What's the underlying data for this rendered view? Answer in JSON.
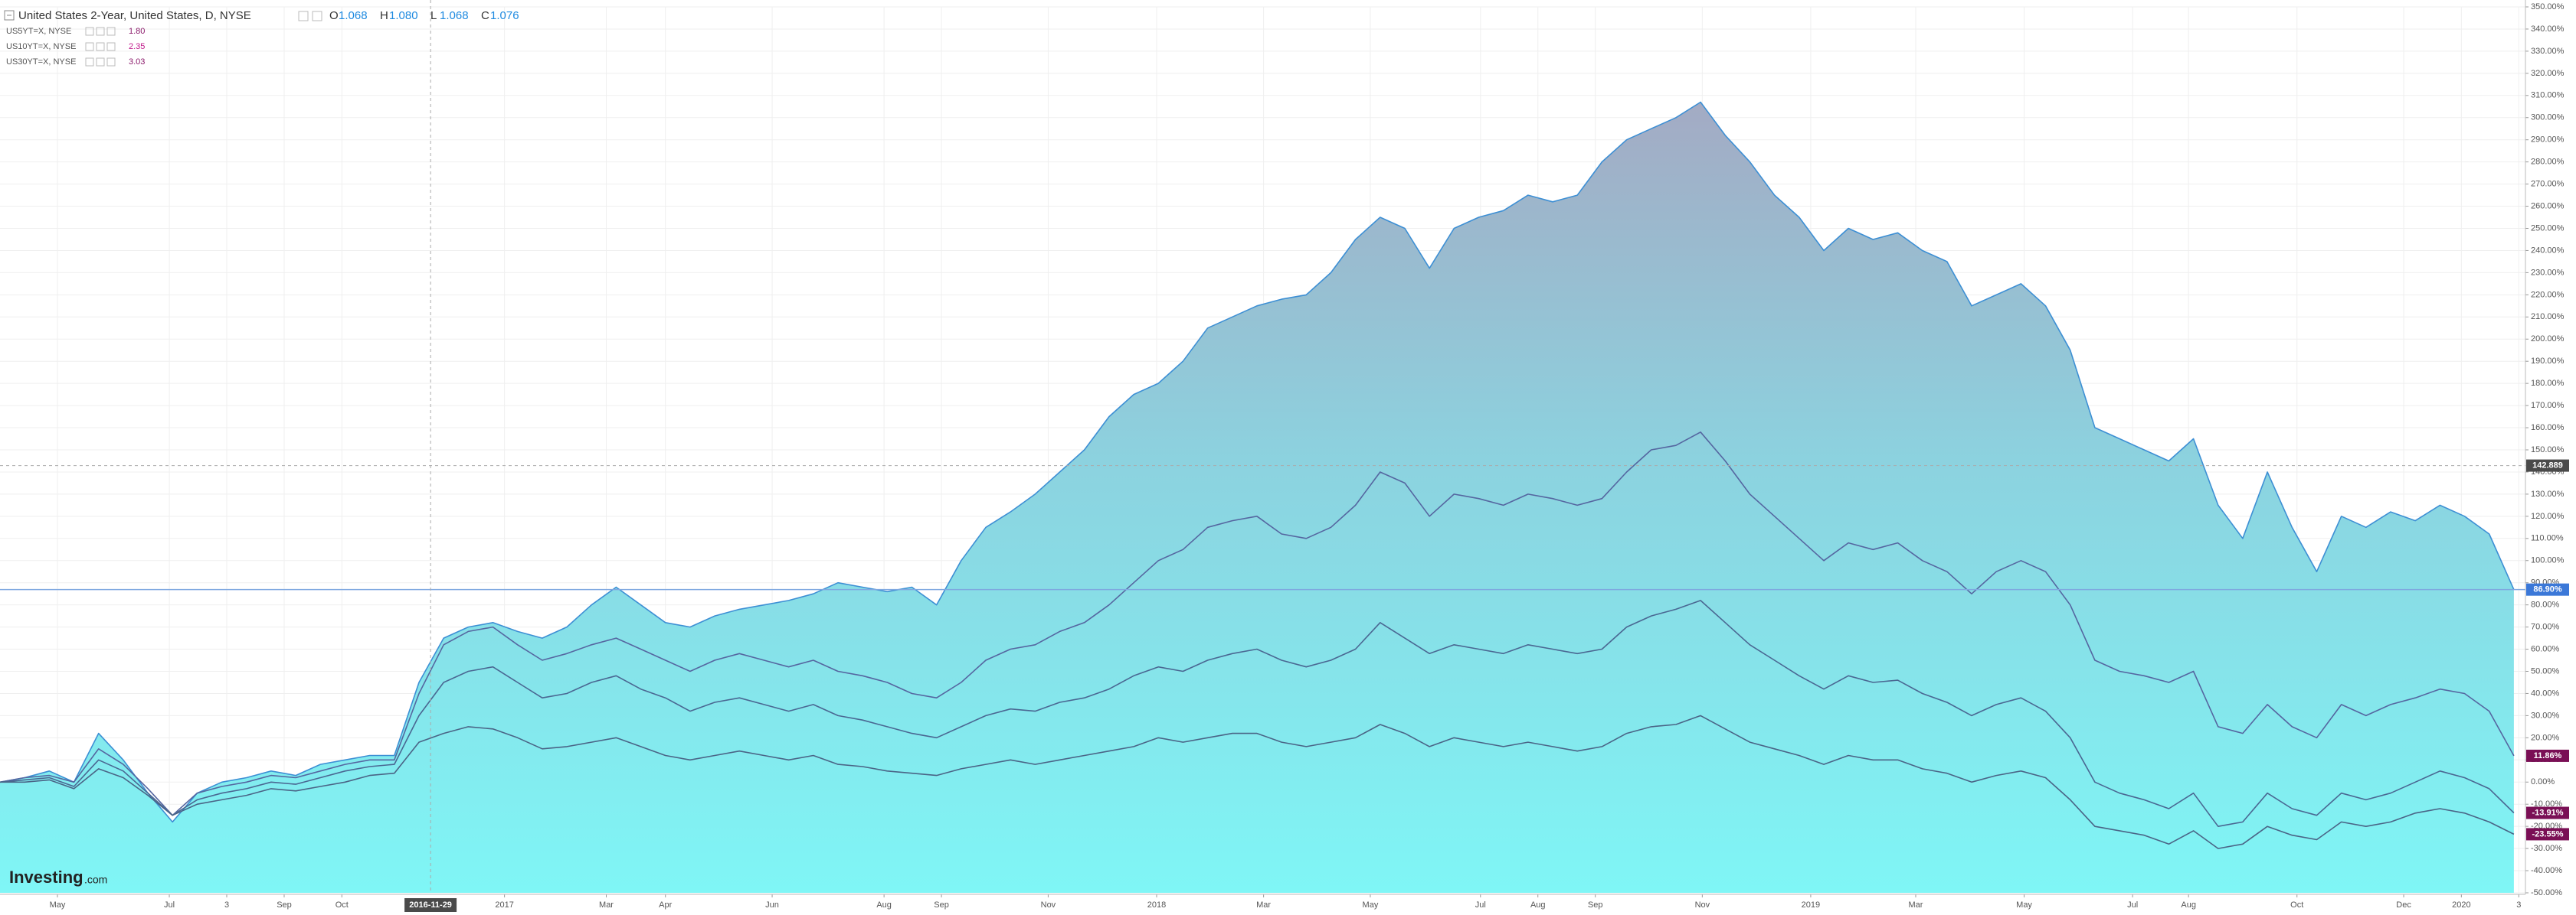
{
  "chart_data": {
    "type": "line",
    "logo": {
      "brand": "Investing",
      "suffix": ".com"
    },
    "x": [
      0,
      1,
      2,
      3,
      4,
      5,
      6,
      7,
      8,
      9,
      10,
      11,
      12,
      13,
      14,
      15,
      16,
      17,
      18,
      19,
      20,
      21,
      22,
      23,
      24,
      25,
      26,
      27,
      28,
      29,
      30,
      31,
      32,
      33,
      34,
      35,
      36,
      37,
      38,
      39,
      40,
      41,
      42,
      43,
      44,
      45,
      46,
      47,
      48,
      49,
      50,
      51,
      52,
      53,
      54,
      55,
      56,
      57,
      58,
      59,
      60,
      61,
      62,
      63,
      64,
      65,
      66,
      67,
      68,
      69,
      70,
      71,
      72,
      73,
      74,
      75,
      76,
      77,
      78,
      79,
      80,
      81,
      82,
      83,
      84,
      85,
      86,
      87,
      88,
      89,
      90,
      91,
      92,
      93,
      94,
      95,
      96,
      97,
      98,
      99,
      100,
      101,
      102
    ],
    "xlim": [
      0,
      102.47
    ],
    "xticks": [
      {
        "value": 2.33,
        "label": "May"
      },
      {
        "value": 6.87,
        "label": "Jul"
      },
      {
        "value": 9.2,
        "label": "3"
      },
      {
        "value": 11.53,
        "label": "Sep"
      },
      {
        "value": 13.87,
        "label": "Oct"
      },
      {
        "value": 20.47,
        "label": "2017"
      },
      {
        "value": 24.6,
        "label": "Mar"
      },
      {
        "value": 27,
        "label": "Apr"
      },
      {
        "value": 31.33,
        "label": "Jun"
      },
      {
        "value": 35.87,
        "label": "Aug"
      },
      {
        "value": 38.2,
        "label": "Sep"
      },
      {
        "value": 42.53,
        "label": "Nov"
      },
      {
        "value": 46.93,
        "label": "2018"
      },
      {
        "value": 51.27,
        "label": "Mar"
      },
      {
        "value": 55.6,
        "label": "May"
      },
      {
        "value": 60.07,
        "label": "Jul"
      },
      {
        "value": 62.4,
        "label": "Aug"
      },
      {
        "value": 64.73,
        "label": "Sep"
      },
      {
        "value": 69.07,
        "label": "Nov"
      },
      {
        "value": 73.47,
        "label": "2019"
      },
      {
        "value": 77.73,
        "label": "Mar"
      },
      {
        "value": 82.13,
        "label": "May"
      },
      {
        "value": 86.53,
        "label": "Jul"
      },
      {
        "value": 88.8,
        "label": "Aug"
      },
      {
        "value": 93.2,
        "label": "Oct"
      },
      {
        "value": 97.53,
        "label": "Dec"
      },
      {
        "value": 99.87,
        "label": "2020"
      },
      {
        "value": 102.2,
        "label": "3"
      }
    ],
    "ylim": [
      -50,
      350
    ],
    "yticks": [
      {
        "value": -50,
        "label": "-50.00%"
      },
      {
        "value": -40,
        "label": "-40.00%"
      },
      {
        "value": -30,
        "label": "-30.00%"
      },
      {
        "value": -20,
        "label": "-20.00%"
      },
      {
        "value": -10,
        "label": "-10.00%"
      },
      {
        "value": 0,
        "label": "0.00%"
      },
      {
        "value": 10,
        "label": "10.00%"
      },
      {
        "value": 20,
        "label": "20.00%"
      },
      {
        "value": 30,
        "label": "30.00%"
      },
      {
        "value": 40,
        "label": "40.00%"
      },
      {
        "value": 50,
        "label": "50.00%"
      },
      {
        "value": 60,
        "label": "60.00%"
      },
      {
        "value": 70,
        "label": "70.00%"
      },
      {
        "value": 80,
        "label": "80.00%"
      },
      {
        "value": 90,
        "label": "90.00%"
      },
      {
        "value": 100,
        "label": "100.00%"
      },
      {
        "value": 110,
        "label": "110.00%"
      },
      {
        "value": 120,
        "label": "120.00%"
      },
      {
        "value": 130,
        "label": "130.00%"
      },
      {
        "value": 140,
        "label": "140.00%"
      },
      {
        "value": 150,
        "label": "150.00%"
      },
      {
        "value": 160,
        "label": "160.00%"
      },
      {
        "value": 170,
        "label": "170.00%"
      },
      {
        "value": 180,
        "label": "180.00%"
      },
      {
        "value": 190,
        "label": "190.00%"
      },
      {
        "value": 200,
        "label": "200.00%"
      },
      {
        "value": 210,
        "label": "210.00%"
      },
      {
        "value": 220,
        "label": "220.00%"
      },
      {
        "value": 230,
        "label": "230.00%"
      },
      {
        "value": 240,
        "label": "240.00%"
      },
      {
        "value": 250,
        "label": "250.00%"
      },
      {
        "value": 260,
        "label": "260.00%"
      },
      {
        "value": 270,
        "label": "270.00%"
      },
      {
        "value": 280,
        "label": "280.00%"
      },
      {
        "value": 290,
        "label": "290.00%"
      },
      {
        "value": 300,
        "label": "300.00%"
      },
      {
        "value": 310,
        "label": "310.00%"
      },
      {
        "value": 320,
        "label": "320.00%"
      },
      {
        "value": 330,
        "label": "330.00%"
      },
      {
        "value": 340,
        "label": "340.00%"
      },
      {
        "value": 350,
        "label": "350.00%"
      }
    ],
    "grid": true,
    "crosshair": {
      "x": 17.47,
      "x_label": "2016-11-29",
      "y": 142.889
    },
    "series": [
      {
        "name": "United States 2-Year, United States, D, NYSE",
        "color": "#3d8fd4",
        "area": true,
        "label_color": "#3b78d8",
        "ohlc": [
          {
            "label": "O",
            "value": "1.068"
          },
          {
            "label": "H",
            "value": "1.080"
          },
          {
            "label": "L",
            "value": "1.068"
          },
          {
            "label": "C",
            "value": "1.076"
          }
        ],
        "values": [
          0,
          2,
          5,
          0,
          22,
          10,
          -5,
          -18,
          -5,
          0,
          2,
          5,
          3,
          8,
          10,
          12,
          12,
          45,
          65,
          70,
          72,
          68,
          65,
          70,
          80,
          88,
          80,
          72,
          70,
          75,
          78,
          80,
          82,
          85,
          90,
          88,
          86,
          88,
          80,
          100,
          115,
          122,
          130,
          140,
          150,
          165,
          175,
          180,
          190,
          205,
          210,
          215,
          218,
          220,
          230,
          245,
          255,
          250,
          232,
          250,
          255,
          258,
          265,
          262,
          265,
          280,
          290,
          295,
          300,
          307,
          292,
          280,
          265,
          255,
          240,
          250,
          245,
          248,
          240,
          235,
          215,
          220,
          225,
          215,
          195,
          160,
          155,
          150,
          145,
          155,
          125,
          110,
          140,
          115,
          95,
          120,
          115,
          122,
          118,
          125,
          120,
          112,
          86.9
        ],
        "value_labels": [
          null,
          null,
          null,
          null,
          null,
          null,
          null,
          null,
          null,
          null,
          null,
          null,
          null,
          null,
          null,
          null,
          null,
          null,
          null,
          null,
          null,
          null,
          null,
          null,
          null,
          null,
          null,
          null,
          null,
          null,
          null,
          null,
          null,
          null,
          null,
          null,
          null,
          null,
          null,
          null,
          null,
          null,
          null,
          null,
          null,
          null,
          null,
          null,
          null,
          null,
          null,
          null,
          null,
          null,
          null,
          null,
          null,
          null,
          null,
          null,
          null,
          null,
          null,
          null,
          null,
          null,
          null,
          null,
          null,
          null,
          null,
          null,
          null,
          null,
          null,
          null,
          null,
          null,
          null,
          null,
          null,
          null,
          null,
          null,
          null,
          null,
          null,
          null,
          null,
          null,
          null,
          null,
          null,
          null,
          null,
          null,
          null,
          null,
          null,
          null,
          null,
          null,
          "86.90%"
        ]
      },
      {
        "name": "US5YT=X, NYSE",
        "quote": "1.80",
        "quote_color": "#8b1a6b",
        "color": "#5566a0",
        "label_color": "#7a0f55",
        "values": [
          0,
          2,
          3,
          0,
          15,
          8,
          -3,
          -15,
          -5,
          -2,
          0,
          3,
          2,
          5,
          8,
          10,
          10,
          40,
          62,
          68,
          70,
          62,
          55,
          58,
          62,
          65,
          60,
          55,
          50,
          55,
          58,
          55,
          52,
          55,
          50,
          48,
          45,
          40,
          38,
          45,
          55,
          60,
          62,
          68,
          72,
          80,
          90,
          100,
          105,
          115,
          118,
          120,
          112,
          110,
          115,
          125,
          140,
          135,
          120,
          130,
          128,
          125,
          130,
          128,
          125,
          128,
          140,
          150,
          152,
          158,
          145,
          130,
          120,
          110,
          100,
          108,
          105,
          108,
          100,
          95,
          85,
          95,
          100,
          95,
          80,
          55,
          50,
          48,
          45,
          50,
          25,
          22,
          35,
          25,
          20,
          35,
          30,
          35,
          38,
          42,
          40,
          32,
          11.86
        ],
        "value_labels": [
          null,
          null,
          null,
          null,
          null,
          null,
          null,
          null,
          null,
          null,
          null,
          null,
          null,
          null,
          null,
          null,
          null,
          null,
          null,
          null,
          null,
          null,
          null,
          null,
          null,
          null,
          null,
          null,
          null,
          null,
          null,
          null,
          null,
          null,
          null,
          null,
          null,
          null,
          null,
          null,
          null,
          null,
          null,
          null,
          null,
          null,
          null,
          null,
          null,
          null,
          null,
          null,
          null,
          null,
          null,
          null,
          null,
          null,
          null,
          null,
          null,
          null,
          null,
          null,
          null,
          null,
          null,
          null,
          null,
          null,
          null,
          null,
          null,
          null,
          null,
          null,
          null,
          null,
          null,
          null,
          null,
          null,
          null,
          null,
          null,
          null,
          null,
          null,
          null,
          null,
          null,
          null,
          null,
          null,
          null,
          null,
          null,
          null,
          null,
          null,
          null,
          null,
          "11.86%"
        ]
      },
      {
        "name": "US10YT=X, NYSE",
        "quote": "2.35",
        "quote_color": "#c0188a",
        "color": "#4a6792",
        "label_color": "#7a0f55",
        "values": [
          0,
          1,
          2,
          -2,
          10,
          5,
          -5,
          -15,
          -8,
          -5,
          -3,
          0,
          -1,
          2,
          5,
          7,
          8,
          30,
          45,
          50,
          52,
          45,
          38,
          40,
          45,
          48,
          42,
          38,
          32,
          36,
          38,
          35,
          32,
          35,
          30,
          28,
          25,
          22,
          20,
          25,
          30,
          33,
          32,
          36,
          38,
          42,
          48,
          52,
          50,
          55,
          58,
          60,
          55,
          52,
          55,
          60,
          72,
          65,
          58,
          62,
          60,
          58,
          62,
          60,
          58,
          60,
          70,
          75,
          78,
          82,
          72,
          62,
          55,
          48,
          42,
          48,
          45,
          46,
          40,
          36,
          30,
          35,
          38,
          32,
          20,
          0,
          -5,
          -8,
          -12,
          -5,
          -20,
          -18,
          -5,
          -12,
          -15,
          -5,
          -8,
          -5,
          0,
          5,
          2,
          -3,
          -13.91
        ],
        "value_labels": [
          null,
          null,
          null,
          null,
          null,
          null,
          null,
          null,
          null,
          null,
          null,
          null,
          null,
          null,
          null,
          null,
          null,
          null,
          null,
          null,
          null,
          null,
          null,
          null,
          null,
          null,
          null,
          null,
          null,
          null,
          null,
          null,
          null,
          null,
          null,
          null,
          null,
          null,
          null,
          null,
          null,
          null,
          null,
          null,
          null,
          null,
          null,
          null,
          null,
          null,
          null,
          null,
          null,
          null,
          null,
          null,
          null,
          null,
          null,
          null,
          null,
          null,
          null,
          null,
          null,
          null,
          null,
          null,
          null,
          null,
          null,
          null,
          null,
          null,
          null,
          null,
          null,
          null,
          null,
          null,
          null,
          null,
          null,
          null,
          null,
          null,
          null,
          null,
          null,
          null,
          null,
          null,
          null,
          null,
          null,
          null,
          null,
          null,
          null,
          null,
          null,
          null,
          "-13.91%"
        ]
      },
      {
        "name": "US30YT=X, NYSE",
        "quote": "3.03",
        "quote_color": "#8b1a6b",
        "color": "#4a6486",
        "label_color": "#7a0f55",
        "values": [
          0,
          0,
          1,
          -3,
          6,
          2,
          -6,
          -15,
          -10,
          -8,
          -6,
          -3,
          -4,
          -2,
          0,
          3,
          4,
          18,
          22,
          25,
          24,
          20,
          15,
          16,
          18,
          20,
          16,
          12,
          10,
          12,
          14,
          12,
          10,
          12,
          8,
          7,
          5,
          4,
          3,
          6,
          8,
          10,
          8,
          10,
          12,
          14,
          16,
          20,
          18,
          20,
          22,
          22,
          18,
          16,
          18,
          20,
          26,
          22,
          16,
          20,
          18,
          16,
          18,
          16,
          14,
          16,
          22,
          25,
          26,
          30,
          24,
          18,
          15,
          12,
          8,
          12,
          10,
          10,
          6,
          4,
          0,
          3,
          5,
          2,
          -8,
          -20,
          -22,
          -24,
          -28,
          -22,
          -30,
          -28,
          -20,
          -24,
          -26,
          -18,
          -20,
          -18,
          -14,
          -12,
          -14,
          -18,
          -23.55
        ],
        "value_labels": [
          null,
          null,
          null,
          null,
          null,
          null,
          null,
          null,
          null,
          null,
          null,
          null,
          null,
          null,
          null,
          null,
          null,
          null,
          null,
          null,
          null,
          null,
          null,
          null,
          null,
          null,
          null,
          null,
          null,
          null,
          null,
          null,
          null,
          null,
          null,
          null,
          null,
          null,
          null,
          null,
          null,
          null,
          null,
          null,
          null,
          null,
          null,
          null,
          null,
          null,
          null,
          null,
          null,
          null,
          null,
          null,
          null,
          null,
          null,
          null,
          null,
          null,
          null,
          null,
          null,
          null,
          null,
          null,
          null,
          null,
          null,
          null,
          null,
          null,
          null,
          null,
          null,
          null,
          null,
          null,
          null,
          null,
          null,
          null,
          null,
          null,
          null,
          null,
          null,
          null,
          null,
          null,
          null,
          null,
          null,
          null,
          null,
          null,
          null,
          null,
          null,
          null,
          "-23.55%"
        ]
      }
    ]
  }
}
